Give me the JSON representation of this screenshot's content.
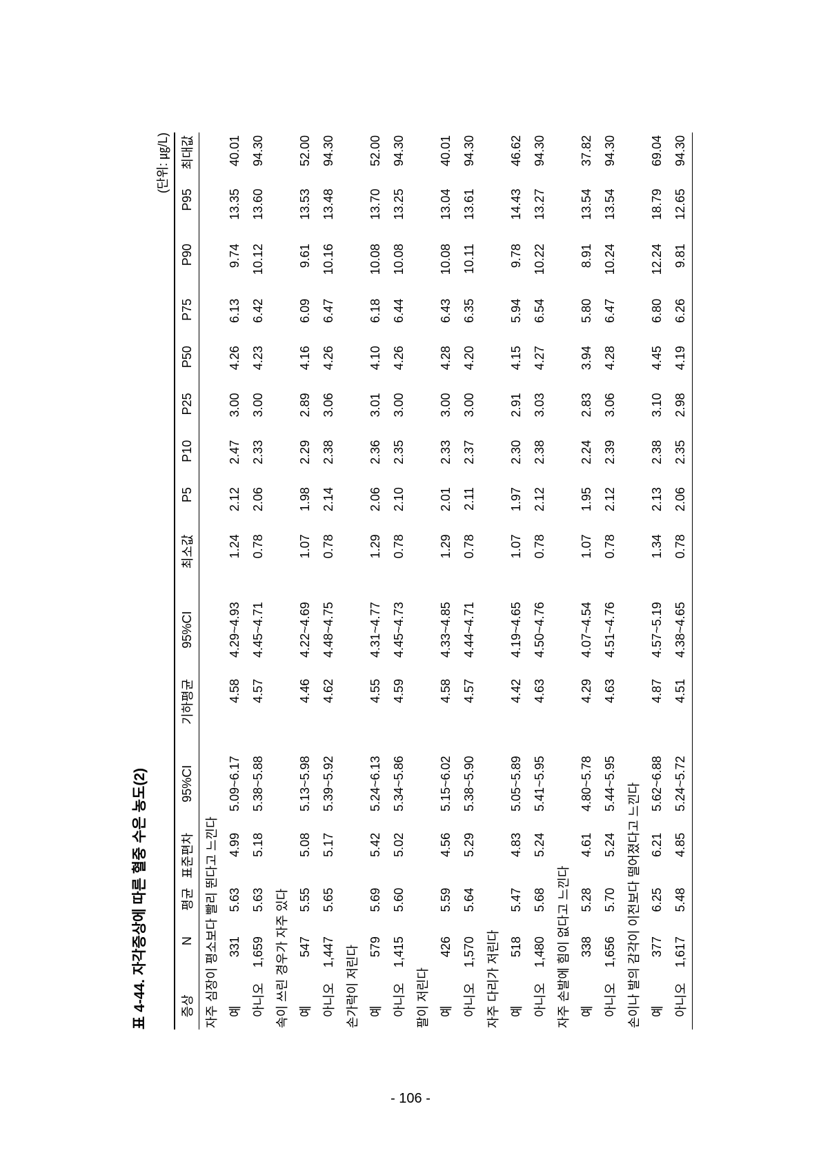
{
  "caption": "표 4-44. 자각증상에 따른 혈중 수은 농도(2)",
  "unit": "(단위: ㎍/L)",
  "page_number": "- 106 -",
  "columns": [
    "증상",
    "N",
    "평균",
    "표준편차",
    "95%CI",
    "기하평균",
    "95%CI",
    "최소값",
    "P5",
    "P10",
    "P25",
    "P50",
    "P75",
    "P90",
    "P95",
    "최대값"
  ],
  "groups": [
    {
      "title": "자주 심장이 평소보다 빨리 뛴다고 느낀다",
      "rows": [
        {
          "label": "예",
          "cells": [
            "331",
            "5.63",
            "4.99",
            "5.09~6.17",
            "4.58",
            "4.29~4.93",
            "1.24",
            "2.12",
            "2.47",
            "3.00",
            "4.26",
            "6.13",
            "9.74",
            "13.35",
            "40.01"
          ]
        },
        {
          "label": "아니오",
          "cells": [
            "1,659",
            "5.63",
            "5.18",
            "5.38~5.88",
            "4.57",
            "4.45~4.71",
            "0.78",
            "2.06",
            "2.33",
            "3.00",
            "4.23",
            "6.42",
            "10.12",
            "13.60",
            "94.30"
          ]
        }
      ]
    },
    {
      "title": "속이 쓰린 경우가 자주 있다",
      "rows": [
        {
          "label": "예",
          "cells": [
            "547",
            "5.55",
            "5.08",
            "5.13~5.98",
            "4.46",
            "4.22~4.69",
            "1.07",
            "1.98",
            "2.29",
            "2.89",
            "4.16",
            "6.09",
            "9.61",
            "13.53",
            "52.00"
          ]
        },
        {
          "label": "아니오",
          "cells": [
            "1,447",
            "5.65",
            "5.17",
            "5.39~5.92",
            "4.62",
            "4.48~4.75",
            "0.78",
            "2.14",
            "2.38",
            "3.06",
            "4.26",
            "6.47",
            "10.16",
            "13.48",
            "94.30"
          ]
        }
      ]
    },
    {
      "title": "손가락이 저린다",
      "rows": [
        {
          "label": "예",
          "cells": [
            "579",
            "5.69",
            "5.42",
            "5.24~6.13",
            "4.55",
            "4.31~4.77",
            "1.29",
            "2.06",
            "2.36",
            "3.01",
            "4.10",
            "6.18",
            "10.08",
            "13.70",
            "52.00"
          ]
        },
        {
          "label": "아니오",
          "cells": [
            "1,415",
            "5.60",
            "5.02",
            "5.34~5.86",
            "4.59",
            "4.45~4.73",
            "0.78",
            "2.10",
            "2.35",
            "3.00",
            "4.26",
            "6.44",
            "10.08",
            "13.25",
            "94.30"
          ]
        }
      ]
    },
    {
      "title": "팔이 저린다",
      "rows": [
        {
          "label": "예",
          "cells": [
            "426",
            "5.59",
            "4.56",
            "5.15~6.02",
            "4.58",
            "4.33~4.85",
            "1.29",
            "2.01",
            "2.33",
            "3.00",
            "4.28",
            "6.43",
            "10.08",
            "13.04",
            "40.01"
          ]
        },
        {
          "label": "아니오",
          "cells": [
            "1,570",
            "5.64",
            "5.29",
            "5.38~5.90",
            "4.57",
            "4.44~4.71",
            "0.78",
            "2.11",
            "2.37",
            "3.00",
            "4.20",
            "6.35",
            "10.11",
            "13.61",
            "94.30"
          ]
        }
      ]
    },
    {
      "title": "자주 다리가 저린다",
      "rows": [
        {
          "label": "예",
          "cells": [
            "518",
            "5.47",
            "4.83",
            "5.05~5.89",
            "4.42",
            "4.19~4.65",
            "1.07",
            "1.97",
            "2.30",
            "2.91",
            "4.15",
            "5.94",
            "9.78",
            "14.43",
            "46.62"
          ]
        },
        {
          "label": "아니오",
          "cells": [
            "1,480",
            "5.68",
            "5.24",
            "5.41~5.95",
            "4.63",
            "4.50~4.76",
            "0.78",
            "2.12",
            "2.38",
            "3.03",
            "4.27",
            "6.54",
            "10.22",
            "13.27",
            "94.30"
          ]
        }
      ]
    },
    {
      "title": "자주 손발에 힘이 없다고 느낀다",
      "rows": [
        {
          "label": "예",
          "cells": [
            "338",
            "5.28",
            "4.61",
            "4.80~5.78",
            "4.29",
            "4.07~4.54",
            "1.07",
            "1.95",
            "2.24",
            "2.83",
            "3.94",
            "5.80",
            "8.91",
            "13.54",
            "37.82"
          ]
        },
        {
          "label": "아니오",
          "cells": [
            "1,656",
            "5.70",
            "5.24",
            "5.44~5.95",
            "4.63",
            "4.51~4.76",
            "0.78",
            "2.12",
            "2.39",
            "3.06",
            "4.28",
            "6.47",
            "10.24",
            "13.54",
            "94.30"
          ]
        }
      ]
    },
    {
      "title": "손이나 발의 감각이 이전보다 떨어졌다고 느낀다",
      "rows": [
        {
          "label": "예",
          "cells": [
            "377",
            "6.25",
            "6.21",
            "5.62~6.88",
            "4.87",
            "4.57~5.19",
            "1.34",
            "2.13",
            "2.38",
            "3.10",
            "4.45",
            "6.80",
            "12.24",
            "18.79",
            "69.04"
          ]
        },
        {
          "label": "아니오",
          "cells": [
            "1,617",
            "5.48",
            "4.85",
            "5.24~5.72",
            "4.51",
            "4.38~4.65",
            "0.78",
            "2.06",
            "2.35",
            "2.98",
            "4.19",
            "6.26",
            "9.81",
            "12.65",
            "94.30"
          ]
        }
      ]
    }
  ]
}
